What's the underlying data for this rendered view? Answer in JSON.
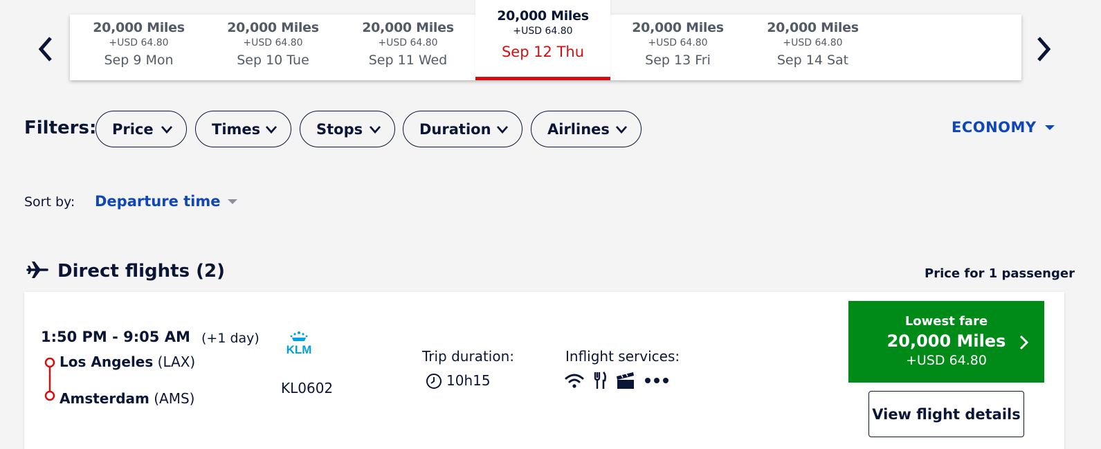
{
  "date_carousel": {
    "prev_icon": "chevron-left-icon",
    "next_icon": "chevron-right-icon",
    "dates": [
      {
        "miles": "20,000 Miles",
        "usd": "+USD 64.80",
        "day": "Sep 9 Mon",
        "selected": false
      },
      {
        "miles": "20,000 Miles",
        "usd": "+USD 64.80",
        "day": "Sep 10 Tue",
        "selected": false
      },
      {
        "miles": "20,000 Miles",
        "usd": "+USD 64.80",
        "day": "Sep 11 Wed",
        "selected": false
      },
      {
        "miles": "20,000 Miles",
        "usd": "+USD 64.80",
        "day": "Sep 12 Thu",
        "selected": true
      },
      {
        "miles": "20,000 Miles",
        "usd": "+USD 64.80",
        "day": "Sep 13 Fri",
        "selected": false
      },
      {
        "miles": "20,000 Miles",
        "usd": "+USD 64.80",
        "day": "Sep 14 Sat",
        "selected": false
      }
    ],
    "selected_color": "#d50f0f"
  },
  "filters": {
    "label": "Filters:",
    "items": [
      "Price",
      "Times",
      "Stops",
      "Duration",
      "Airlines"
    ],
    "cabin": "ECONOMY"
  },
  "sort": {
    "label": "Sort by:",
    "value": "Departure time"
  },
  "section": {
    "icon": "plane-icon",
    "title": "Direct flights (2)",
    "price_note": "Price for 1 passenger"
  },
  "flights": [
    {
      "times": "1:50 PM - 9:05 AM",
      "day_offset": "(+1 day)",
      "from_city": "Los Angeles",
      "from_code": "(LAX)",
      "to_city": "Amsterdam",
      "to_code": "(AMS)",
      "airline": "KLM",
      "flight_number": "KL0602",
      "duration_label": "Trip duration:",
      "duration": "10h15",
      "services_label": "Inflight services:",
      "services": [
        "wifi-icon",
        "meal-icon",
        "entertainment-icon",
        "more-icon"
      ],
      "fare_label": "Lowest fare",
      "fare_miles": "20,000 Miles",
      "fare_usd": "+USD 64.80",
      "details_label": "View flight details"
    }
  ],
  "colors": {
    "accent_blue": "#0f47b8",
    "fare_green": "#008a18",
    "klm_blue": "#00a1de",
    "navy": "#0b1536",
    "route_red": "#d50f0f"
  }
}
